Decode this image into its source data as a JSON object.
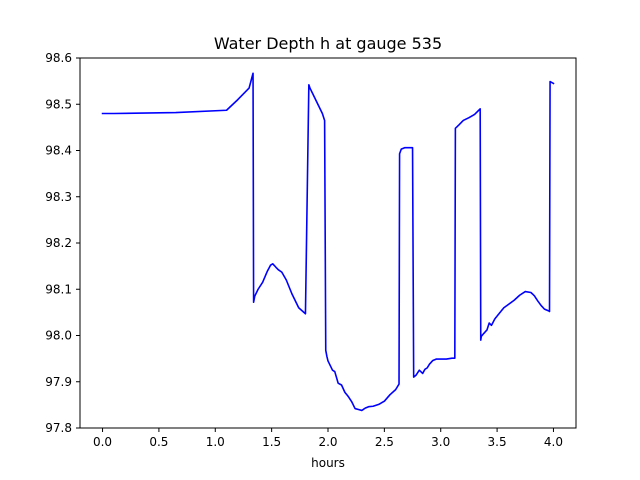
{
  "chart_data": {
    "type": "line",
    "title": "Water Depth h at gauge 535",
    "xlabel": "hours",
    "ylabel": "",
    "xlim": [
      -0.2,
      4.2
    ],
    "ylim": [
      97.8,
      98.6
    ],
    "xticks": [
      "0.0",
      "0.5",
      "1.0",
      "1.5",
      "2.0",
      "2.5",
      "3.0",
      "3.5",
      "4.0"
    ],
    "xtick_values": [
      0.0,
      0.5,
      1.0,
      1.5,
      2.0,
      2.5,
      3.0,
      3.5,
      4.0
    ],
    "yticks": [
      "97.8",
      "97.9",
      "98.0",
      "98.1",
      "98.2",
      "98.3",
      "98.4",
      "98.5",
      "98.6"
    ],
    "ytick_values": [
      97.8,
      97.9,
      98.0,
      98.1,
      98.2,
      98.3,
      98.4,
      98.5,
      98.6
    ],
    "grid": false,
    "series": [
      {
        "color": "#0000ff",
        "x": [
          0.0,
          0.1,
          0.65,
          1.1,
          1.2,
          1.3,
          1.335,
          1.34,
          1.35,
          1.38,
          1.42,
          1.46,
          1.49,
          1.51,
          1.54,
          1.56,
          1.59,
          1.63,
          1.68,
          1.74,
          1.8,
          1.83,
          1.84,
          1.87,
          1.91,
          1.95,
          1.97,
          1.98,
          1.99,
          2.0,
          2.02,
          2.04,
          2.06,
          2.09,
          2.12,
          2.15,
          2.18,
          2.21,
          2.24,
          2.27,
          2.3,
          2.33,
          2.36,
          2.4,
          2.45,
          2.5,
          2.55,
          2.6,
          2.63,
          2.635,
          2.65,
          2.68,
          2.74,
          2.75,
          2.76,
          2.78,
          2.81,
          2.84,
          2.86,
          2.88,
          2.9,
          2.93,
          2.96,
          3.0,
          3.05,
          3.1,
          3.125,
          3.13,
          3.16,
          3.2,
          3.25,
          3.3,
          3.35,
          3.355,
          3.36,
          3.38,
          3.41,
          3.43,
          3.45,
          3.48,
          3.52,
          3.56,
          3.6,
          3.65,
          3.7,
          3.75,
          3.8,
          3.83,
          3.86,
          3.89,
          3.92,
          3.96,
          3.965,
          3.97,
          4.0
        ],
        "y": [
          98.48,
          98.48,
          98.482,
          98.487,
          98.51,
          98.535,
          98.567,
          98.072,
          98.085,
          98.1,
          98.115,
          98.138,
          98.152,
          98.155,
          98.147,
          98.142,
          98.137,
          98.12,
          98.09,
          98.06,
          98.047,
          98.542,
          98.535,
          98.52,
          98.5,
          98.48,
          98.465,
          97.968,
          97.955,
          97.945,
          97.935,
          97.925,
          97.922,
          97.897,
          97.893,
          97.877,
          97.868,
          97.857,
          97.842,
          97.84,
          97.838,
          97.843,
          97.846,
          97.847,
          97.851,
          97.858,
          97.872,
          97.883,
          97.895,
          98.393,
          98.403,
          98.406,
          98.406,
          98.406,
          97.91,
          97.914,
          97.925,
          97.918,
          97.927,
          97.93,
          97.938,
          97.946,
          97.949,
          97.949,
          97.949,
          97.951,
          97.951,
          98.448,
          98.455,
          98.465,
          98.471,
          98.478,
          98.49,
          97.99,
          97.998,
          98.004,
          98.012,
          98.027,
          98.022,
          98.036,
          98.048,
          98.06,
          98.067,
          98.076,
          98.087,
          98.095,
          98.093,
          98.086,
          98.075,
          98.065,
          98.057,
          98.053,
          98.052,
          98.549,
          98.545
        ]
      }
    ]
  }
}
